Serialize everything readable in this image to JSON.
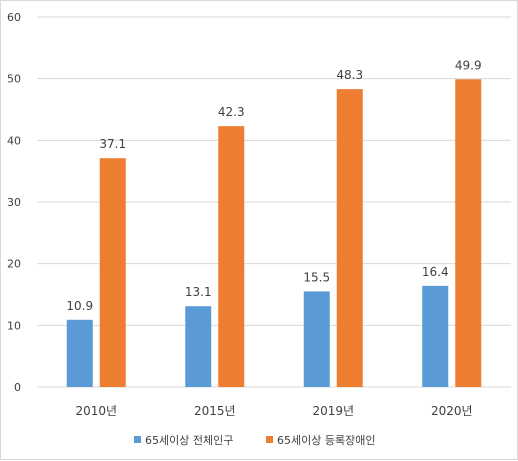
{
  "chart_data": {
    "type": "bar",
    "categories": [
      "2010년",
      "2015년",
      "2019년",
      "2020년"
    ],
    "series": [
      {
        "name": "65세이상 전체인구",
        "values": [
          10.9,
          13.1,
          15.5,
          16.4
        ],
        "color": "#5b9bd5"
      },
      {
        "name": "65세이상 등록장애인",
        "values": [
          37.1,
          42.3,
          48.3,
          49.9
        ],
        "color": "#ed7d31"
      }
    ],
    "title": "",
    "xlabel": "",
    "ylabel": "",
    "ylim": [
      0,
      60
    ],
    "yticks": [
      0,
      10,
      20,
      30,
      40,
      50,
      60
    ],
    "grid": true,
    "legend_position": "bottom",
    "gridline_color": "#d9d9d9"
  }
}
